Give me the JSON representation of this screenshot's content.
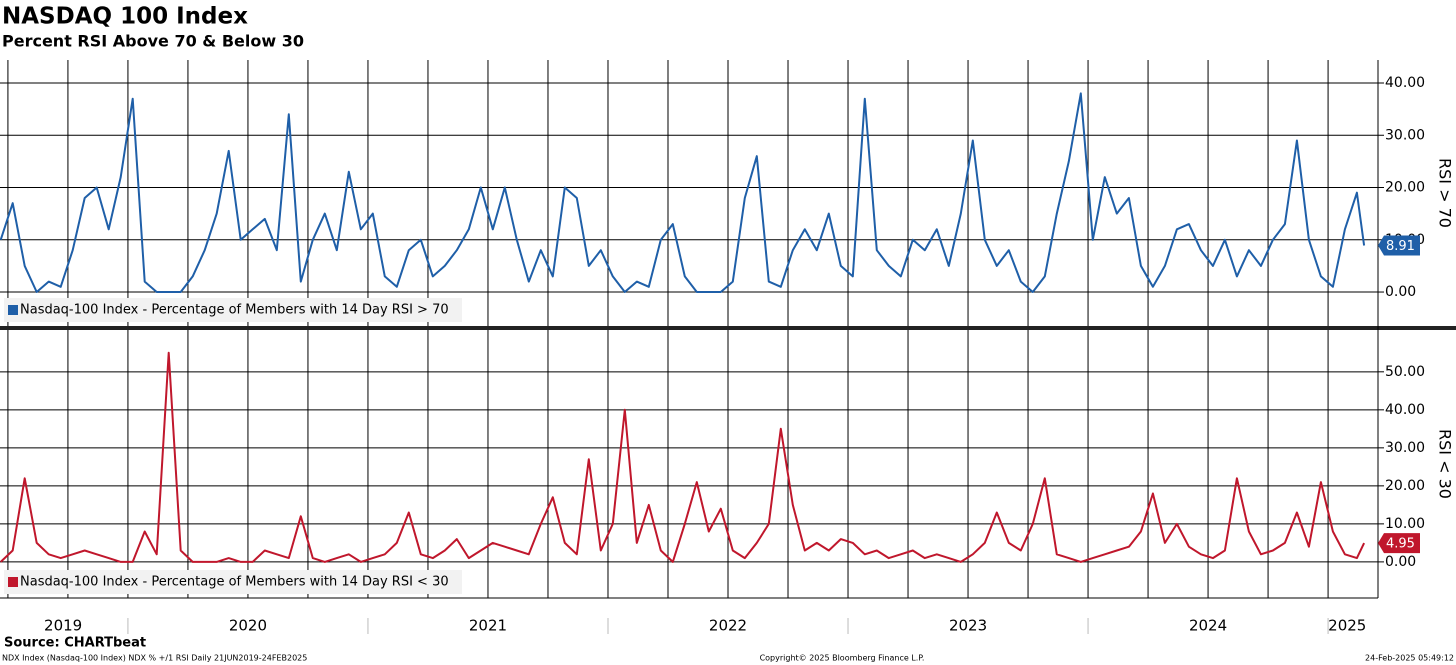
{
  "chart_data": [
    {
      "type": "line",
      "title": "NASDAQ 100 Index",
      "subtitle": "Percent RSI Above 70 & Below 30",
      "ylabel": "RSI > 70",
      "x": [
        2019.47,
        2019.52,
        2019.57,
        2019.62,
        2019.67,
        2019.72,
        2019.77,
        2019.82,
        2019.87,
        2019.92,
        2019.97,
        2020.02,
        2020.07,
        2020.12,
        2020.17,
        2020.22,
        2020.27,
        2020.32,
        2020.37,
        2020.42,
        2020.47,
        2020.52,
        2020.57,
        2020.62,
        2020.67,
        2020.72,
        2020.77,
        2020.82,
        2020.87,
        2020.92,
        2020.97,
        2021.02,
        2021.07,
        2021.12,
        2021.17,
        2021.22,
        2021.27,
        2021.32,
        2021.37,
        2021.42,
        2021.47,
        2021.52,
        2021.57,
        2021.62,
        2021.67,
        2021.72,
        2021.77,
        2021.82,
        2021.87,
        2021.92,
        2021.97,
        2022.02,
        2022.07,
        2022.12,
        2022.17,
        2022.22,
        2022.27,
        2022.32,
        2022.37,
        2022.42,
        2022.47,
        2022.52,
        2022.57,
        2022.62,
        2022.67,
        2022.72,
        2022.77,
        2022.82,
        2022.87,
        2022.92,
        2022.97,
        2023.02,
        2023.07,
        2023.12,
        2023.17,
        2023.22,
        2023.27,
        2023.32,
        2023.37,
        2023.42,
        2023.47,
        2023.52,
        2023.57,
        2023.62,
        2023.67,
        2023.72,
        2023.77,
        2023.82,
        2023.87,
        2023.92,
        2023.97,
        2024.02,
        2024.07,
        2024.12,
        2024.17,
        2024.22,
        2024.27,
        2024.32,
        2024.37,
        2024.42,
        2024.47,
        2024.52,
        2024.57,
        2024.62,
        2024.67,
        2024.72,
        2024.77,
        2024.82,
        2024.87,
        2024.92,
        2024.97,
        2025.02,
        2025.07,
        2025.12,
        2025.15
      ],
      "series": [
        {
          "name": "Nasdaq-100 Index - Percentage of Members with 14 Day RSI > 70",
          "color": "#1f5fa8",
          "values": [
            10,
            17,
            5,
            0,
            2,
            1,
            8,
            18,
            20,
            12,
            22,
            37,
            2,
            0,
            0,
            0,
            3,
            8,
            15,
            27,
            10,
            12,
            14,
            8,
            34,
            2,
            10,
            15,
            8,
            23,
            12,
            15,
            3,
            1,
            8,
            10,
            3,
            5,
            8,
            12,
            20,
            12,
            20,
            10,
            2,
            8,
            3,
            20,
            18,
            5,
            8,
            3,
            0,
            2,
            1,
            10,
            13,
            3,
            0,
            0,
            0,
            2,
            18,
            26,
            2,
            1,
            8,
            12,
            8,
            15,
            5,
            3,
            37,
            8,
            5,
            3,
            10,
            8,
            12,
            5,
            15,
            29,
            10,
            5,
            8,
            2,
            0,
            3,
            15,
            25,
            38,
            10,
            22,
            15,
            18,
            5,
            1,
            5,
            12,
            13,
            8,
            5,
            10,
            3,
            8,
            5,
            10,
            13,
            29,
            10,
            3,
            1,
            12,
            19,
            8.91
          ]
        }
      ],
      "xlim": [
        2019.467,
        2025.208
      ],
      "ylim": [
        -6.5,
        44.4
      ],
      "yticks": [
        {
          "value": 0,
          "label": "0.00"
        },
        {
          "value": 10,
          "label": "10.00"
        },
        {
          "value": 20,
          "label": "20.00"
        },
        {
          "value": 30,
          "label": "30.00"
        },
        {
          "value": 40,
          "label": "40.00"
        }
      ],
      "xgrid": [
        2019.5,
        2019.75,
        2020,
        2020.25,
        2020.5,
        2020.75,
        2021,
        2021.25,
        2021.5,
        2021.75,
        2022,
        2022.25,
        2022.5,
        2022.75,
        2023,
        2023.25,
        2023.5,
        2023.75,
        2024,
        2024.25,
        2024.5,
        2024.75,
        2025
      ],
      "grid": true,
      "legend": "bottom-left"
    },
    {
      "type": "line",
      "ylabel": "RSI < 30",
      "x": [
        2019.47,
        2019.52,
        2019.57,
        2019.62,
        2019.67,
        2019.72,
        2019.77,
        2019.82,
        2019.87,
        2019.92,
        2019.97,
        2020.02,
        2020.07,
        2020.12,
        2020.17,
        2020.22,
        2020.27,
        2020.32,
        2020.37,
        2020.42,
        2020.47,
        2020.52,
        2020.57,
        2020.62,
        2020.67,
        2020.72,
        2020.77,
        2020.82,
        2020.87,
        2020.92,
        2020.97,
        2021.02,
        2021.07,
        2021.12,
        2021.17,
        2021.22,
        2021.27,
        2021.32,
        2021.37,
        2021.42,
        2021.47,
        2021.52,
        2021.57,
        2021.62,
        2021.67,
        2021.72,
        2021.77,
        2021.82,
        2021.87,
        2021.92,
        2021.97,
        2022.02,
        2022.07,
        2022.12,
        2022.17,
        2022.22,
        2022.27,
        2022.32,
        2022.37,
        2022.42,
        2022.47,
        2022.52,
        2022.57,
        2022.62,
        2022.67,
        2022.72,
        2022.77,
        2022.82,
        2022.87,
        2022.92,
        2022.97,
        2023.02,
        2023.07,
        2023.12,
        2023.17,
        2023.22,
        2023.27,
        2023.32,
        2023.37,
        2023.42,
        2023.47,
        2023.52,
        2023.57,
        2023.62,
        2023.67,
        2023.72,
        2023.77,
        2023.82,
        2023.87,
        2023.92,
        2023.97,
        2024.02,
        2024.07,
        2024.12,
        2024.17,
        2024.22,
        2024.27,
        2024.32,
        2024.37,
        2024.42,
        2024.47,
        2024.52,
        2024.57,
        2024.62,
        2024.67,
        2024.72,
        2024.77,
        2024.82,
        2024.87,
        2024.92,
        2024.97,
        2025.02,
        2025.07,
        2025.12,
        2025.15
      ],
      "series": [
        {
          "name": "Nasdaq-100 Index - Percentage of Members with 14 Day RSI < 30",
          "color": "#c0172c",
          "values": [
            0,
            3,
            22,
            5,
            2,
            1,
            2,
            3,
            2,
            1,
            0,
            0,
            8,
            2,
            55,
            3,
            0,
            0,
            0,
            1,
            0,
            0,
            3,
            2,
            1,
            12,
            1,
            0,
            1,
            2,
            0,
            1,
            2,
            5,
            13,
            2,
            1,
            3,
            6,
            1,
            3,
            5,
            4,
            3,
            2,
            10,
            17,
            5,
            2,
            27,
            3,
            10,
            40,
            5,
            15,
            3,
            0,
            10,
            21,
            8,
            14,
            3,
            1,
            5,
            10,
            35,
            15,
            3,
            5,
            3,
            6,
            5,
            2,
            3,
            1,
            2,
            3,
            1,
            2,
            1,
            0,
            2,
            5,
            13,
            5,
            3,
            10,
            22,
            2,
            1,
            0,
            1,
            2,
            3,
            4,
            8,
            18,
            5,
            10,
            4,
            2,
            1,
            3,
            22,
            8,
            2,
            3,
            5,
            13,
            4,
            21,
            8,
            2,
            1,
            4.95
          ]
        }
      ],
      "xlim": [
        2019.467,
        2025.208
      ],
      "ylim": [
        -9.5,
        61
      ],
      "yticks": [
        {
          "value": 0,
          "label": "0.00"
        },
        {
          "value": 10,
          "label": "10.00"
        },
        {
          "value": 20,
          "label": "20.00"
        },
        {
          "value": 30,
          "label": "30.00"
        },
        {
          "value": 40,
          "label": "40.00"
        },
        {
          "value": 50,
          "label": "50.00"
        }
      ],
      "xgrid": [
        2019.5,
        2019.75,
        2020,
        2020.25,
        2020.5,
        2020.75,
        2021,
        2021.25,
        2021.5,
        2021.75,
        2022,
        2022.25,
        2022.5,
        2022.75,
        2023,
        2023.25,
        2023.5,
        2023.75,
        2024,
        2024.25,
        2024.5,
        2024.75,
        2025
      ],
      "xticks": [
        {
          "value": 2019.73,
          "label": "2019"
        },
        {
          "value": 2020.5,
          "label": "2020"
        },
        {
          "value": 2021.5,
          "label": "2021"
        },
        {
          "value": 2022.5,
          "label": "2022"
        },
        {
          "value": 2023.5,
          "label": "2023"
        },
        {
          "value": 2024.5,
          "label": "2024"
        },
        {
          "value": 2025.08,
          "label": "2025"
        }
      ],
      "grid": true,
      "legend": "bottom-left"
    }
  ],
  "footer": {
    "source": "Source: CHARTbeat",
    "description": "NDX Index (Nasdaq-100 Index) NDX % +/1 RSI  Daily 21JUN2019-24FEB2025",
    "copyright": "Copyright© 2025 Bloomberg Finance L.P.",
    "timestamp": "24-Feb-2025 05:49:12"
  }
}
